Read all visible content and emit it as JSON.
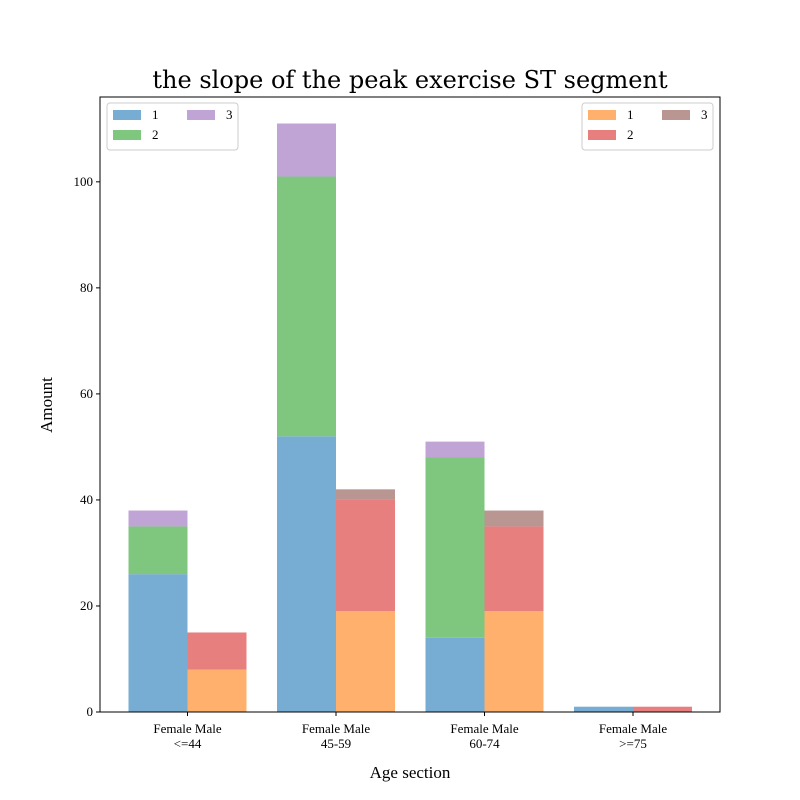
{
  "chart_data": {
    "type": "bar",
    "title": "the slope of the peak exercise ST segment",
    "xlabel": "Age section",
    "ylabel": "Amount",
    "ylim": [
      0,
      116
    ],
    "yticks": [
      0,
      20,
      40,
      60,
      80,
      100
    ],
    "categories": [
      {
        "top": "Female Male",
        "bottom": "<=44"
      },
      {
        "top": "Female Male",
        "bottom": "45-59"
      },
      {
        "top": "Female Male",
        "bottom": "60-74"
      },
      {
        "top": "Female Male",
        "bottom": ">=75"
      }
    ],
    "groups": [
      {
        "name": "Female",
        "series": [
          {
            "name": "1",
            "color": "#77acd3",
            "values": [
              26,
              52,
              14,
              1
            ]
          },
          {
            "name": "2",
            "color": "#7fc67f",
            "values": [
              9,
              49,
              34,
              0
            ]
          },
          {
            "name": "3",
            "color": "#c1a4d6",
            "values": [
              3,
              10,
              3,
              0
            ]
          }
        ]
      },
      {
        "name": "Male",
        "series": [
          {
            "name": "1",
            "color": "#ffb06c",
            "values": [
              8,
              19,
              19,
              0
            ]
          },
          {
            "name": "2",
            "color": "#e77f7f",
            "values": [
              7,
              21,
              16,
              1
            ]
          },
          {
            "name": "3",
            "color": "#b99692",
            "values": [
              0,
              2,
              3,
              0
            ]
          }
        ]
      }
    ],
    "legends": [
      {
        "placement": "upper-left",
        "group": 0
      },
      {
        "placement": "upper-right",
        "group": 1
      }
    ],
    "grid": false
  }
}
